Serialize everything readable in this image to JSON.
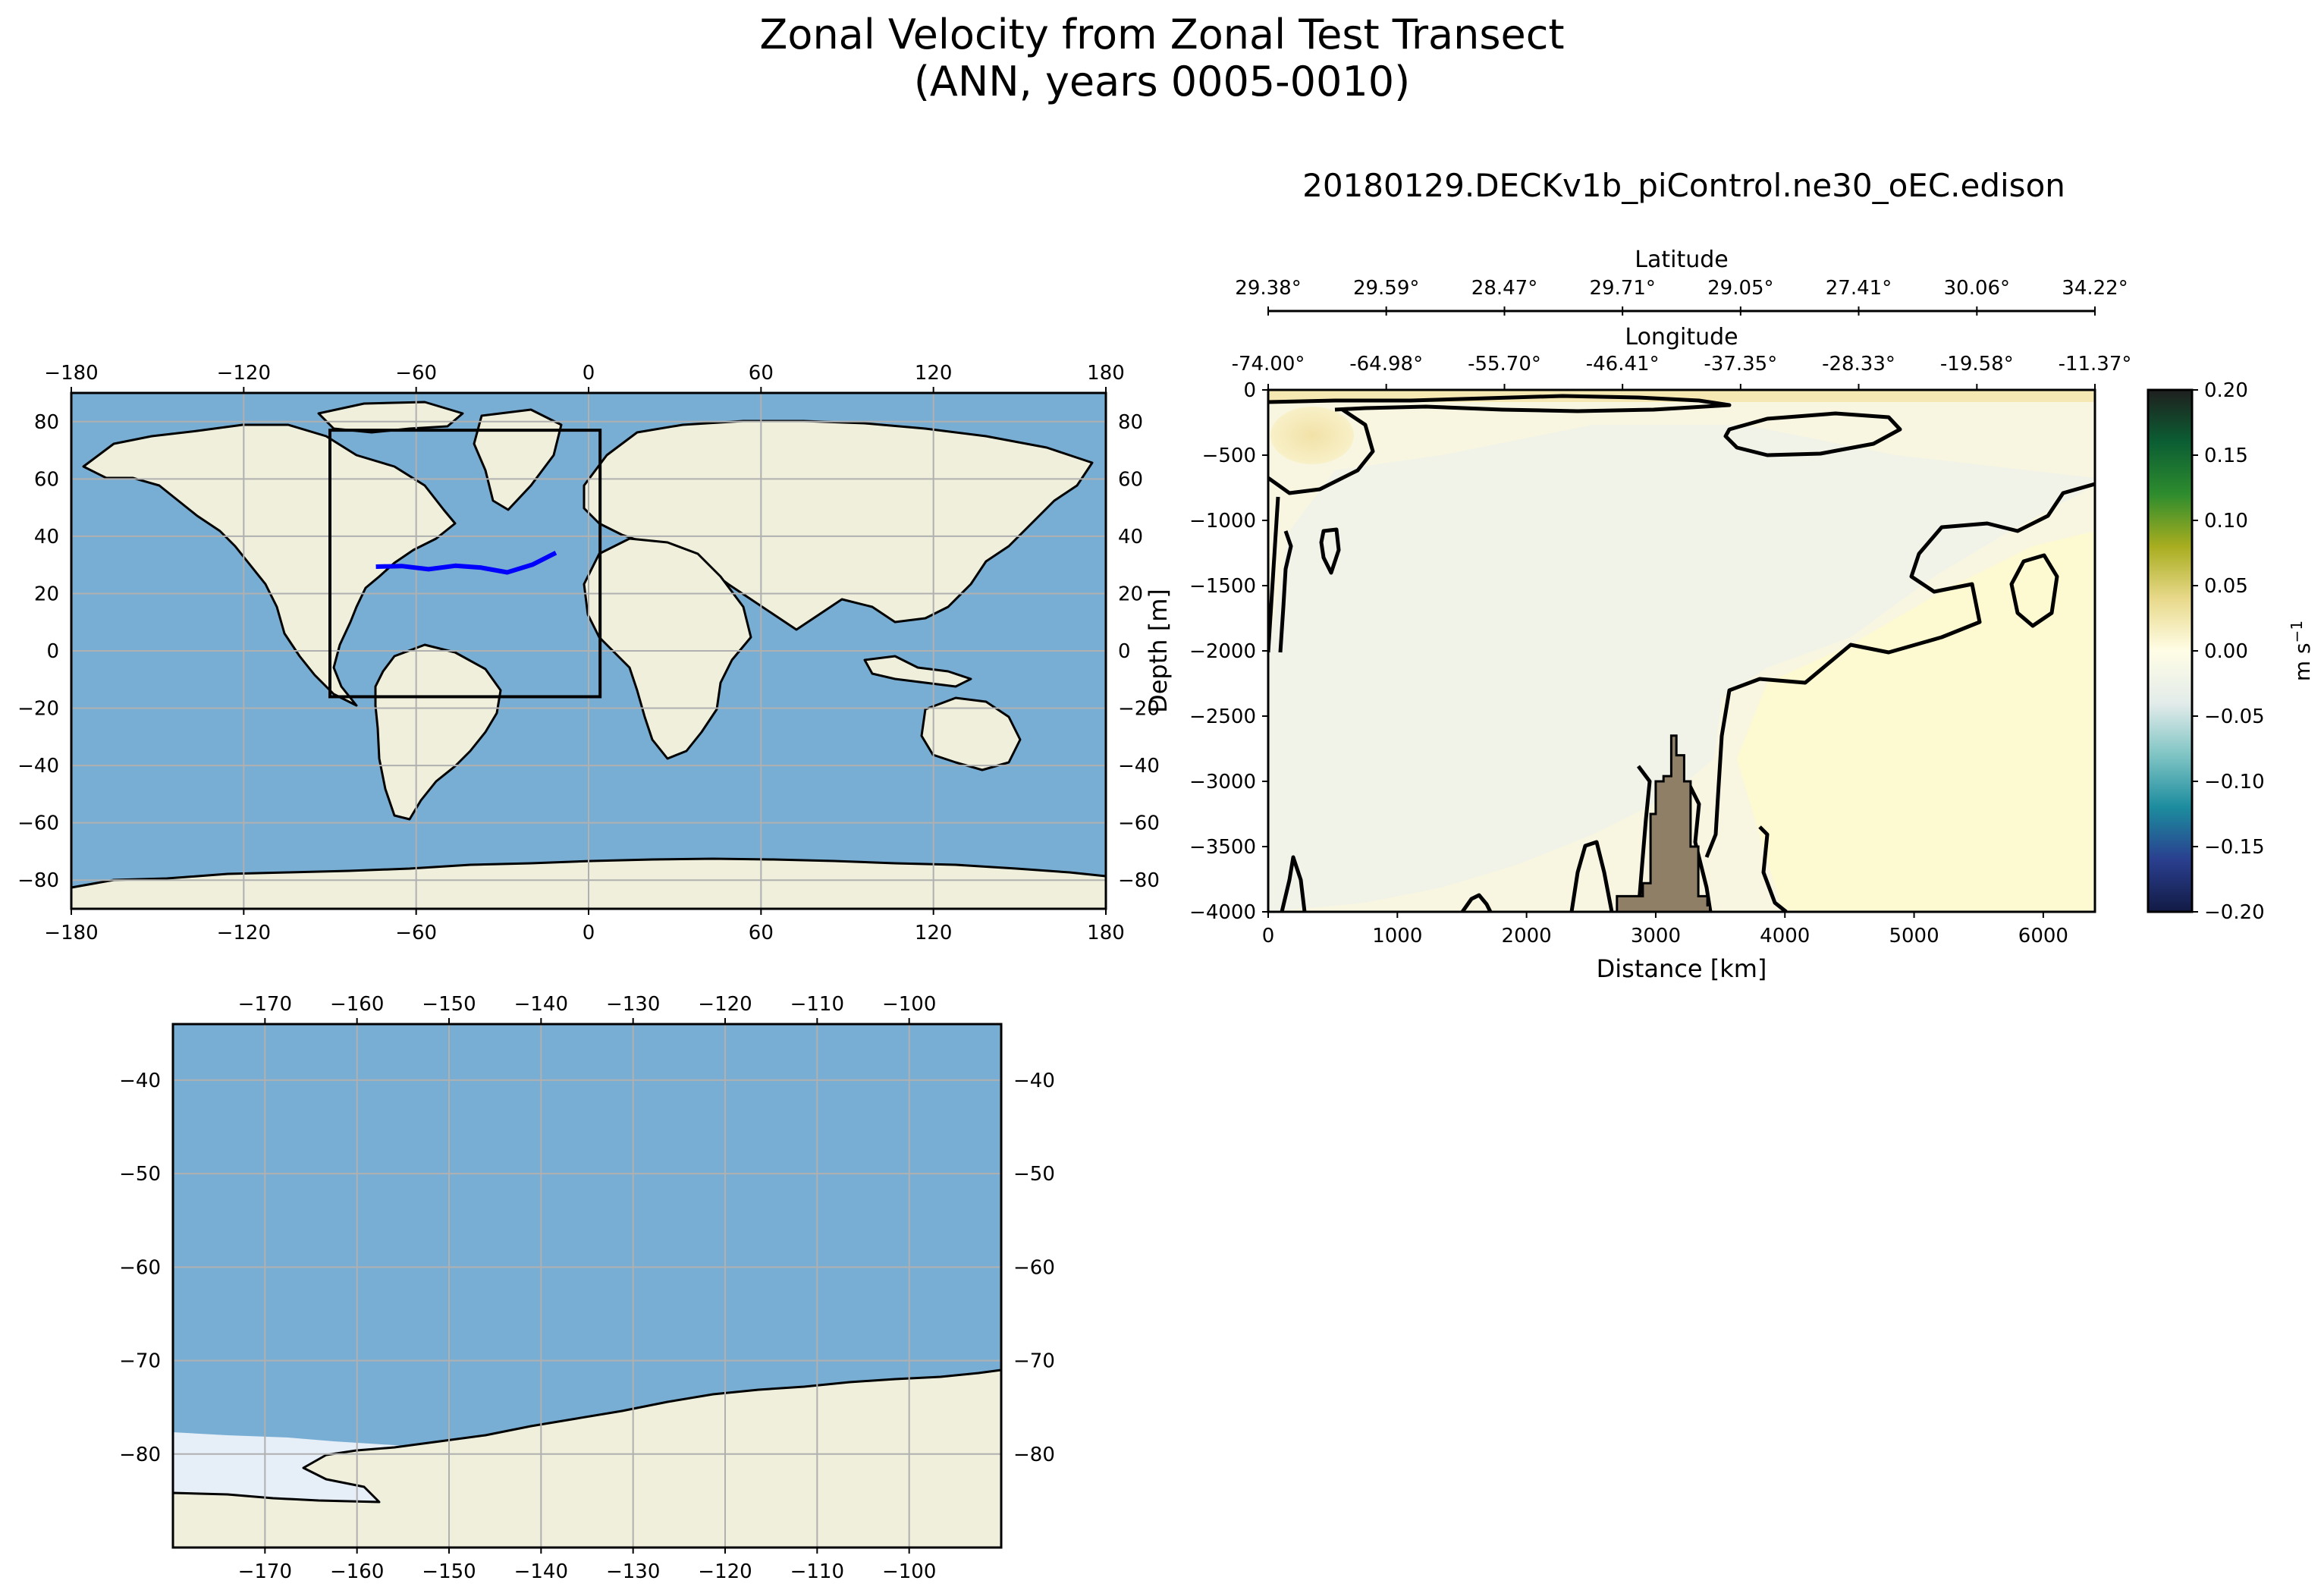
{
  "figure": {
    "title_line1": "Zonal Velocity from Zonal Test Transect",
    "title_line2": "(ANN, years 0005-0010)",
    "run_name": "20180129.DECKv1b_piControl.ne30_oEC.edison"
  },
  "colors": {
    "ocean": "#79aed4",
    "land": "#efefdb",
    "ice": "#e6eef8",
    "transect": "#0000ff",
    "bathymetry": "#8e7f66",
    "grid": "#b0b0b0"
  },
  "chart_data": [
    {
      "type": "map",
      "name": "global-map",
      "lon_ticks": [
        "−180",
        "−120",
        "−60",
        "0",
        "60",
        "120",
        "180"
      ],
      "lon_values": [
        -180,
        -120,
        -60,
        0,
        60,
        120,
        180
      ],
      "lat_ticks": [
        "80",
        "60",
        "40",
        "20",
        "0",
        "−20",
        "−40",
        "−60",
        "−80"
      ],
      "lat_values": [
        80,
        60,
        40,
        20,
        0,
        -20,
        -40,
        -60,
        -80
      ],
      "xlim": [
        -180,
        180
      ],
      "ylim": [
        -90,
        90
      ],
      "grid": true,
      "transect": {
        "lon": [
          -74.0,
          -64.98,
          -55.7,
          -46.41,
          -37.35,
          -28.33,
          -19.58,
          -11.37
        ],
        "lat": [
          29.38,
          29.59,
          28.47,
          29.71,
          29.05,
          27.41,
          30.06,
          34.22
        ]
      },
      "inset_box": {
        "lon": [
          -90,
          4
        ],
        "lat": [
          -16,
          77
        ]
      }
    },
    {
      "type": "map",
      "name": "southern-ocean-map",
      "lon_ticks": [
        "−170",
        "−160",
        "−150",
        "−140",
        "−130",
        "−120",
        "−110",
        "−100"
      ],
      "lon_values": [
        -170,
        -160,
        -150,
        -140,
        -130,
        -120,
        -110,
        -100
      ],
      "lat_ticks": [
        "−40",
        "−50",
        "−60",
        "−70",
        "−80"
      ],
      "lat_values": [
        -40,
        -50,
        -60,
        -70,
        -80
      ],
      "xlim": [
        -180,
        -90
      ],
      "ylim": [
        -90,
        -34
      ],
      "grid": true
    },
    {
      "type": "heatmap",
      "name": "transect-section",
      "xlabel": "Distance [km]",
      "ylabel": "Depth [m]",
      "xlim": [
        0,
        6400
      ],
      "ylim": [
        -4000,
        0
      ],
      "x_ticks": [
        "0",
        "1000",
        "2000",
        "3000",
        "4000",
        "5000",
        "6000"
      ],
      "x_values": [
        0,
        1000,
        2000,
        3000,
        4000,
        5000,
        6000
      ],
      "y_ticks": [
        "0",
        "−500",
        "−1000",
        "−1500",
        "−2000",
        "−2500",
        "−3000",
        "−3500",
        "−4000"
      ],
      "y_values": [
        0,
        -500,
        -1000,
        -1500,
        -2000,
        -2500,
        -3000,
        -3500,
        -4000
      ],
      "top_axis_latitude": {
        "label": "Latitude",
        "ticks": [
          "29.38°",
          "29.59°",
          "28.47°",
          "29.71°",
          "29.05°",
          "27.41°",
          "30.06°",
          "34.22°"
        ]
      },
      "top_axis_longitude": {
        "label": "Longitude",
        "ticks": [
          "-74.00°",
          "-64.98°",
          "-55.70°",
          "-46.41°",
          "-37.35°",
          "-28.33°",
          "-19.58°",
          "-11.37°"
        ]
      },
      "tick_distances_km": [
        0,
        914,
        1829,
        2743,
        3657,
        4571,
        5486,
        6400
      ],
      "bathymetry_profile": {
        "x_km": [
          2700,
          2700,
          2900,
          2900,
          2960,
          2960,
          3000,
          3000,
          3060,
          3060,
          3120,
          3120,
          3160,
          3160,
          3220,
          3220,
          3270,
          3270,
          3330,
          3330,
          3400,
          3400,
          3420,
          3420
        ],
        "depth_m": [
          -4000,
          -3880,
          -3880,
          -3780,
          -3780,
          -3250,
          -3250,
          -3000,
          -3000,
          -2960,
          -2960,
          -2650,
          -2650,
          -2800,
          -2800,
          -3000,
          -3000,
          -3500,
          -3500,
          -3880,
          -3880,
          -3950,
          -3950,
          -4000
        ]
      },
      "colorbar": {
        "label": "m s",
        "label_superscript": "−1",
        "vmin": -0.2,
        "vmax": 0.2,
        "ticks": [
          "0.20",
          "0.15",
          "0.10",
          "0.05",
          "0.00",
          "−0.05",
          "−0.10",
          "−0.15",
          "−0.20"
        ],
        "tick_values": [
          0.2,
          0.15,
          0.1,
          0.05,
          0.0,
          -0.05,
          -0.1,
          -0.15,
          -0.2
        ],
        "colormap_stops": [
          "#1f1f1f",
          "#0b5e33",
          "#2e8c2e",
          "#a8ad1f",
          "#e8d98b",
          "#fffde6",
          "#e3ecea",
          "#7fc4c4",
          "#1c8c9e",
          "#2a3f8f",
          "#121a44"
        ]
      }
    }
  ]
}
